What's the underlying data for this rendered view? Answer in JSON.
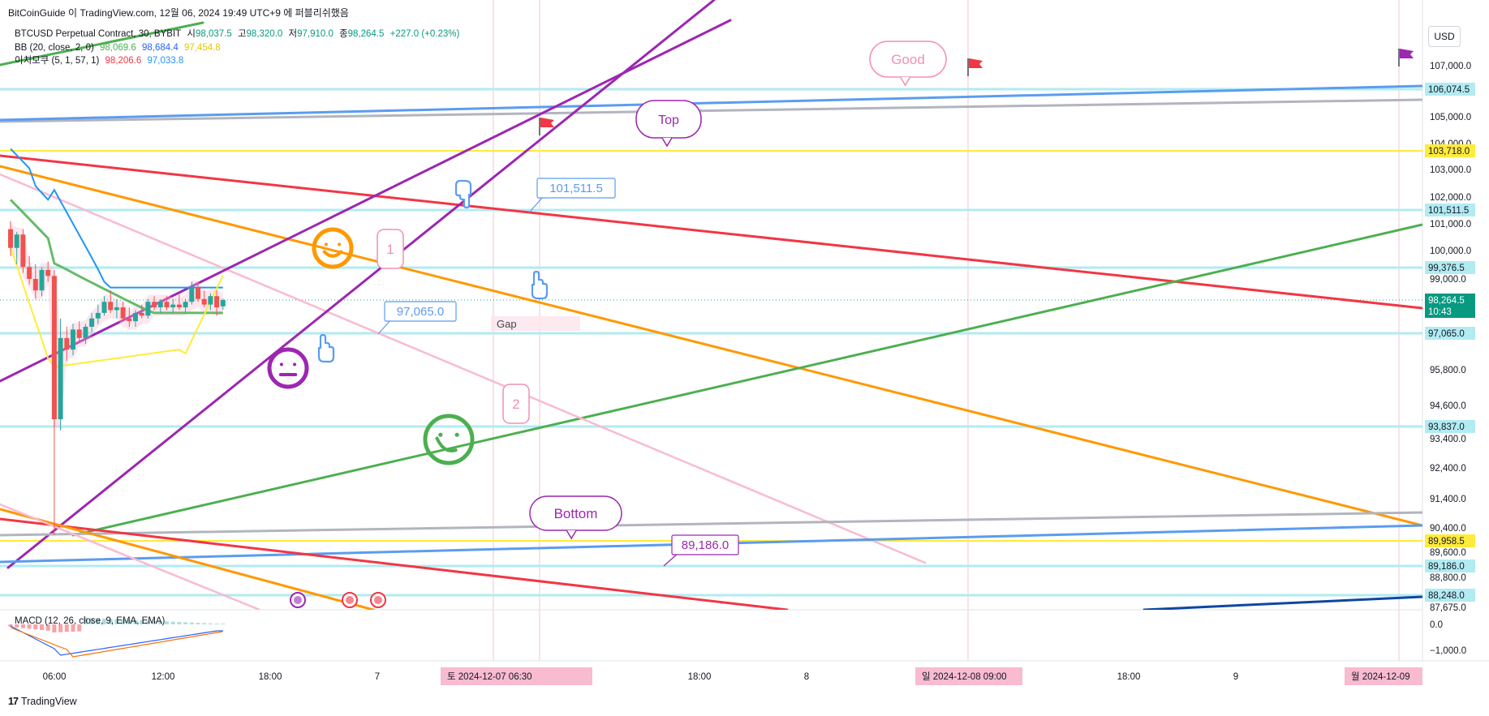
{
  "caption": "BitCoinGuide 이 TradingView.com, 12월 06, 2024 19:49 UTC+9 에 퍼블리쉬했음",
  "currency": "USD",
  "branding": "TradingView",
  "legend": {
    "symbol": "BTCUSD Perpetual Contract, 30, BYBIT",
    "open_label": "시",
    "open": "98,037.5",
    "high_label": "고",
    "high": "98,320.0",
    "low_label": "저",
    "low": "97,910.0",
    "close_label": "종",
    "close": "98,264.5",
    "change": "+227.0 (+0.23%)",
    "bb_label": "BB (20, close, 2, 0)",
    "bb_basis": "98,069.6",
    "bb_upper": "98,684.4",
    "bb_lower": "97,454.8",
    "ichimoku_label": "이치모쿠 (5, 1, 57, 1)",
    "ichimoku_a": "98,206.6",
    "ichimoku_b": "97,033.8"
  },
  "macd_label": "MACD (12, 26, close, 9, EMA, EMA)",
  "colors": {
    "up": "#26a69a",
    "down": "#ef5350",
    "purple": "#9c27b0",
    "orange": "#ff9800",
    "red": "#f23645",
    "green": "#4caf50",
    "blue": "#5b9cf0",
    "gray": "#b2b5be",
    "yellow": "#ffeb3b",
    "pink": "#f8bbd0",
    "cyan": "#b2ebf2",
    "navy": "#0d47a1"
  },
  "chart_data": {
    "type": "candlestick",
    "y_axis_ticks": [
      {
        "value": 107000,
        "label": "107,000.0"
      },
      {
        "value": 105000,
        "label": "105,000.0"
      },
      {
        "value": 104000,
        "label": "104,000.0"
      },
      {
        "value": 103000,
        "label": "103,000.0"
      },
      {
        "value": 102000,
        "label": "102,000.0"
      },
      {
        "value": 101000,
        "label": "101,000.0"
      },
      {
        "value": 100000,
        "label": "100,000.0"
      },
      {
        "value": 99000,
        "label": "99,000.0"
      },
      {
        "value": 95800,
        "label": "95,800.0"
      },
      {
        "value": 94600,
        "label": "94,600.0"
      },
      {
        "value": 93400,
        "label": "93,400.0"
      },
      {
        "value": 92400,
        "label": "92,400.0"
      },
      {
        "value": 91400,
        "label": "91,400.0"
      },
      {
        "value": 90400,
        "label": "90,400.0"
      },
      {
        "value": 89600,
        "label": "89,600.0"
      },
      {
        "value": 88800,
        "label": "88,800.0"
      },
      {
        "value": 87675,
        "label": "87,675.0"
      }
    ],
    "price_badges": [
      {
        "value": 106074.5,
        "label": "106,074.5",
        "style": "cyan"
      },
      {
        "value": 103718,
        "label": "103,718.0",
        "style": "yellow"
      },
      {
        "value": 101511.5,
        "label": "101,511.5",
        "style": "cyan"
      },
      {
        "value": 99376.5,
        "label": "99,376.5",
        "style": "cyan"
      },
      {
        "value": 98264.5,
        "label": "98,264.5",
        "time": "10:43",
        "style": "current"
      },
      {
        "value": 97065,
        "label": "97,065.0",
        "style": "cyan"
      },
      {
        "value": 93837,
        "label": "93,837.0",
        "style": "cyan"
      },
      {
        "value": 89958.5,
        "label": "89,958.5",
        "style": "yellow"
      },
      {
        "value": 89186,
        "label": "89,186.0",
        "style": "cyan"
      },
      {
        "value": 88248,
        "label": "88,248.0",
        "style": "cyan"
      }
    ],
    "macd_ticks": [
      {
        "value": 0,
        "label": "0.0"
      },
      {
        "value": -1000,
        "label": "−1,000.0"
      }
    ],
    "x_axis_ticks": [
      {
        "label": "06:00"
      },
      {
        "label": "12:00"
      },
      {
        "label": "18:00"
      },
      {
        "label": "7"
      },
      {
        "label": "18:00"
      },
      {
        "label": "8"
      },
      {
        "label": "18:00"
      },
      {
        "label": "9"
      }
    ],
    "x_axis_highlights": [
      {
        "label": "토 2024-12-07   06:30"
      },
      {
        "label": "일 2024-12-08   09:00"
      },
      {
        "label": "월 2024-12-09"
      }
    ],
    "candles": [
      {
        "o": 100800,
        "h": 101100,
        "l": 99800,
        "c": 100100
      },
      {
        "o": 100100,
        "h": 100700,
        "l": 99500,
        "c": 100600
      },
      {
        "o": 100600,
        "h": 100800,
        "l": 99200,
        "c": 99400
      },
      {
        "o": 99400,
        "h": 99800,
        "l": 98800,
        "c": 99000
      },
      {
        "o": 99000,
        "h": 99500,
        "l": 98300,
        "c": 98600
      },
      {
        "o": 98600,
        "h": 99400,
        "l": 98400,
        "c": 99300
      },
      {
        "o": 99300,
        "h": 99600,
        "l": 98900,
        "c": 99100
      },
      {
        "o": 99100,
        "h": 99300,
        "l": 93800,
        "c": 94100
      },
      {
        "o": 94100,
        "h": 97600,
        "l": 93700,
        "c": 96900
      },
      {
        "o": 96900,
        "h": 97300,
        "l": 96100,
        "c": 96500
      },
      {
        "o": 96500,
        "h": 97400,
        "l": 96300,
        "c": 97200
      },
      {
        "o": 97200,
        "h": 97500,
        "l": 96800,
        "c": 96900
      },
      {
        "o": 96900,
        "h": 97400,
        "l": 96700,
        "c": 97300
      },
      {
        "o": 97300,
        "h": 97800,
        "l": 97100,
        "c": 97600
      },
      {
        "o": 97600,
        "h": 98100,
        "l": 97400,
        "c": 97800
      },
      {
        "o": 97800,
        "h": 98400,
        "l": 97700,
        "c": 98200
      },
      {
        "o": 98200,
        "h": 98600,
        "l": 97800,
        "c": 97900
      },
      {
        "o": 97900,
        "h": 98300,
        "l": 97600,
        "c": 98000
      },
      {
        "o": 98000,
        "h": 98200,
        "l": 97500,
        "c": 97600
      },
      {
        "o": 97600,
        "h": 98000,
        "l": 97300,
        "c": 97500
      },
      {
        "o": 97500,
        "h": 97900,
        "l": 97300,
        "c": 97800
      },
      {
        "o": 97800,
        "h": 98100,
        "l": 97600,
        "c": 97700
      },
      {
        "o": 97700,
        "h": 98300,
        "l": 97600,
        "c": 98200
      },
      {
        "o": 98200,
        "h": 98400,
        "l": 97900,
        "c": 98000
      },
      {
        "o": 98000,
        "h": 98300,
        "l": 97800,
        "c": 98200
      },
      {
        "o": 98200,
        "h": 98400,
        "l": 97900,
        "c": 98000
      },
      {
        "o": 98000,
        "h": 98300,
        "l": 97800,
        "c": 98100
      },
      {
        "o": 98100,
        "h": 98500,
        "l": 97900,
        "c": 98000
      },
      {
        "o": 98000,
        "h": 98300,
        "l": 97800,
        "c": 98200
      },
      {
        "o": 98200,
        "h": 98900,
        "l": 98100,
        "c": 98700
      },
      {
        "o": 98700,
        "h": 98900,
        "l": 98200,
        "c": 98300
      },
      {
        "o": 98300,
        "h": 98600,
        "l": 98000,
        "c": 98100
      },
      {
        "o": 98100,
        "h": 98500,
        "l": 97900,
        "c": 98400
      },
      {
        "o": 98400,
        "h": 98600,
        "l": 97700,
        "c": 98000
      },
      {
        "o": 98037.5,
        "h": 98320,
        "l": 97910,
        "c": 98264.5
      }
    ],
    "callouts": [
      {
        "text": "101,511.5",
        "style": "blue"
      },
      {
        "text": "97,065.0",
        "style": "blue"
      },
      {
        "text": "89,186.0",
        "style": "purple"
      }
    ],
    "bubbles": [
      {
        "text": "Good",
        "style": "pink"
      },
      {
        "text": "Top",
        "style": "purple"
      },
      {
        "text": "Bottom",
        "style": "purple"
      },
      {
        "text": "1",
        "style": "pink"
      },
      {
        "text": "2",
        "style": "pink"
      }
    ],
    "gap_label": "Gap"
  }
}
